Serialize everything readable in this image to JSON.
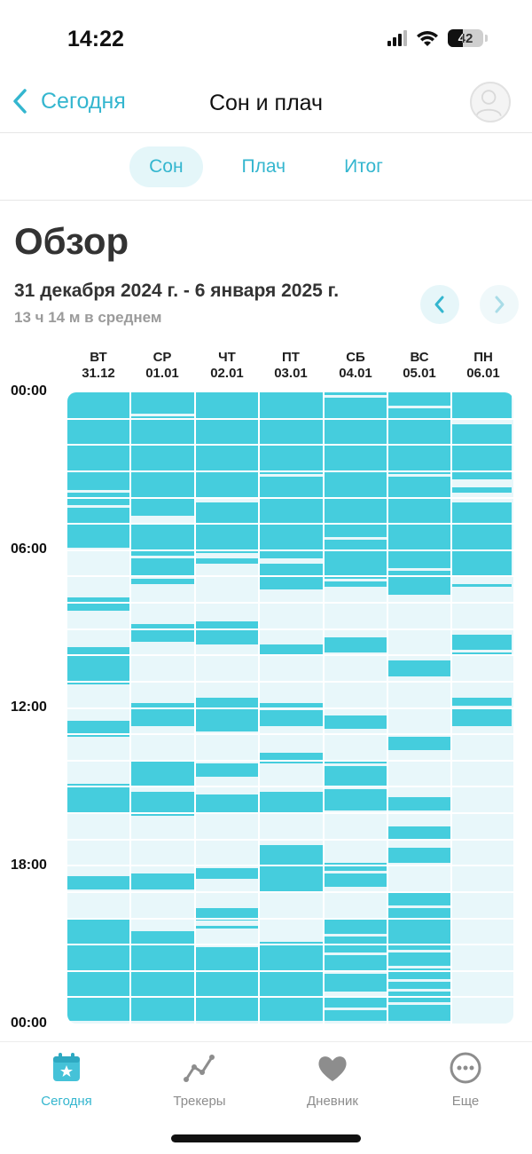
{
  "status_bar": {
    "time": "14:22",
    "battery": "42",
    "battery_level": 0.42
  },
  "header": {
    "back_label": "Сегодня",
    "title": "Сон и плач"
  },
  "tabs": [
    {
      "label": "Сон",
      "active": true
    },
    {
      "label": "Плач",
      "active": false
    },
    {
      "label": "Итог",
      "active": false
    }
  ],
  "overview": {
    "title": "Обзор",
    "range": "31 декабря 2024 г. - 6 января 2025 г.",
    "average": "13 ч 14 м в среднем"
  },
  "colors": {
    "accent": "#34b6cf",
    "sleep": "#45cddd",
    "chart_bg": "#e8f7fa"
  },
  "chart_data": {
    "type": "timeline",
    "time_axis_labels": [
      "00:00",
      "06:00",
      "12:00",
      "18:00",
      "00:00"
    ],
    "days": [
      {
        "dow": "ВТ",
        "date": "31.12",
        "sleep": [
          [
            0,
            3.7
          ],
          [
            3.8,
            4.3
          ],
          [
            4.4,
            5.9
          ],
          [
            7.8,
            8.3
          ],
          [
            9.7,
            11.1
          ],
          [
            12.5,
            13.1
          ],
          [
            14.9,
            16.0
          ],
          [
            18.4,
            18.9
          ],
          [
            20.0,
            23.9
          ]
        ]
      },
      {
        "dow": "СР",
        "date": "01.01",
        "sleep": [
          [
            0,
            0.8
          ],
          [
            0.9,
            4.7
          ],
          [
            5.0,
            6.2
          ],
          [
            6.3,
            7.0
          ],
          [
            7.1,
            7.3
          ],
          [
            8.8,
            9.5
          ],
          [
            11.8,
            12.7
          ],
          [
            14.0,
            15.0
          ],
          [
            15.2,
            16.1
          ],
          [
            18.3,
            18.9
          ],
          [
            20.5,
            23.9
          ]
        ]
      },
      {
        "dow": "ЧТ",
        "date": "02.01",
        "sleep": [
          [
            0,
            4.0
          ],
          [
            4.2,
            6.1
          ],
          [
            6.3,
            6.5
          ],
          [
            8.7,
            9.6
          ],
          [
            11.6,
            12.9
          ],
          [
            14.1,
            14.6
          ],
          [
            15.3,
            16.0
          ],
          [
            18.1,
            18.5
          ],
          [
            19.6,
            20.1
          ],
          [
            20.3,
            20.4
          ],
          [
            21.1,
            23.9
          ]
        ]
      },
      {
        "dow": "ПТ",
        "date": "03.01",
        "sleep": [
          [
            0,
            3.1
          ],
          [
            3.2,
            6.3
          ],
          [
            6.5,
            7.5
          ],
          [
            9.6,
            10.0
          ],
          [
            11.8,
            12.0
          ],
          [
            12.1,
            12.7
          ],
          [
            13.7,
            14.1
          ],
          [
            15.2,
            16.0
          ],
          [
            17.2,
            19.0
          ],
          [
            20.9,
            23.9
          ]
        ]
      },
      {
        "dow": "СБ",
        "date": "04.01",
        "sleep": [
          [
            0,
            0.1
          ],
          [
            0.2,
            5.5
          ],
          [
            5.6,
            7.1
          ],
          [
            7.2,
            7.4
          ],
          [
            9.3,
            9.9
          ],
          [
            12.3,
            12.8
          ],
          [
            14.0,
            14.1
          ],
          [
            14.2,
            15.0
          ],
          [
            15.1,
            15.9
          ],
          [
            17.9,
            18.2
          ],
          [
            18.3,
            18.8
          ],
          [
            20.0,
            20.6
          ],
          [
            20.7,
            21.3
          ],
          [
            21.4,
            22.0
          ],
          [
            22.1,
            22.8
          ],
          [
            23.0,
            23.4
          ],
          [
            23.5,
            23.9
          ]
        ]
      },
      {
        "dow": "ВС",
        "date": "05.01",
        "sleep": [
          [
            0,
            0.5
          ],
          [
            0.6,
            3.1
          ],
          [
            3.2,
            6.7
          ],
          [
            6.8,
            7.7
          ],
          [
            10.2,
            10.8
          ],
          [
            13.1,
            13.6
          ],
          [
            15.4,
            15.9
          ],
          [
            16.5,
            17.0
          ],
          [
            17.3,
            17.9
          ],
          [
            19.0,
            19.5
          ],
          [
            19.6,
            21.2
          ],
          [
            21.3,
            21.8
          ],
          [
            21.9,
            22.3
          ],
          [
            22.4,
            22.7
          ],
          [
            22.8,
            23.2
          ],
          [
            23.3,
            23.9
          ]
        ]
      },
      {
        "dow": "ПН",
        "date": "06.01",
        "sleep": [
          [
            0,
            1.0
          ],
          [
            1.2,
            3.3
          ],
          [
            3.6,
            3.8
          ],
          [
            4.2,
            7.0
          ],
          [
            7.3,
            7.4
          ],
          [
            9.2,
            9.8
          ],
          [
            9.9,
            10.0
          ],
          [
            11.6,
            11.9
          ],
          [
            12.0,
            12.7
          ]
        ]
      }
    ]
  },
  "tabbar": [
    {
      "label": "Сегодня",
      "icon": "calendar-star-icon",
      "active": true
    },
    {
      "label": "Трекеры",
      "icon": "trend-line-icon",
      "active": false
    },
    {
      "label": "Дневник",
      "icon": "heart-icon",
      "active": false
    },
    {
      "label": "Еще",
      "icon": "more-dots-icon",
      "active": false
    }
  ]
}
